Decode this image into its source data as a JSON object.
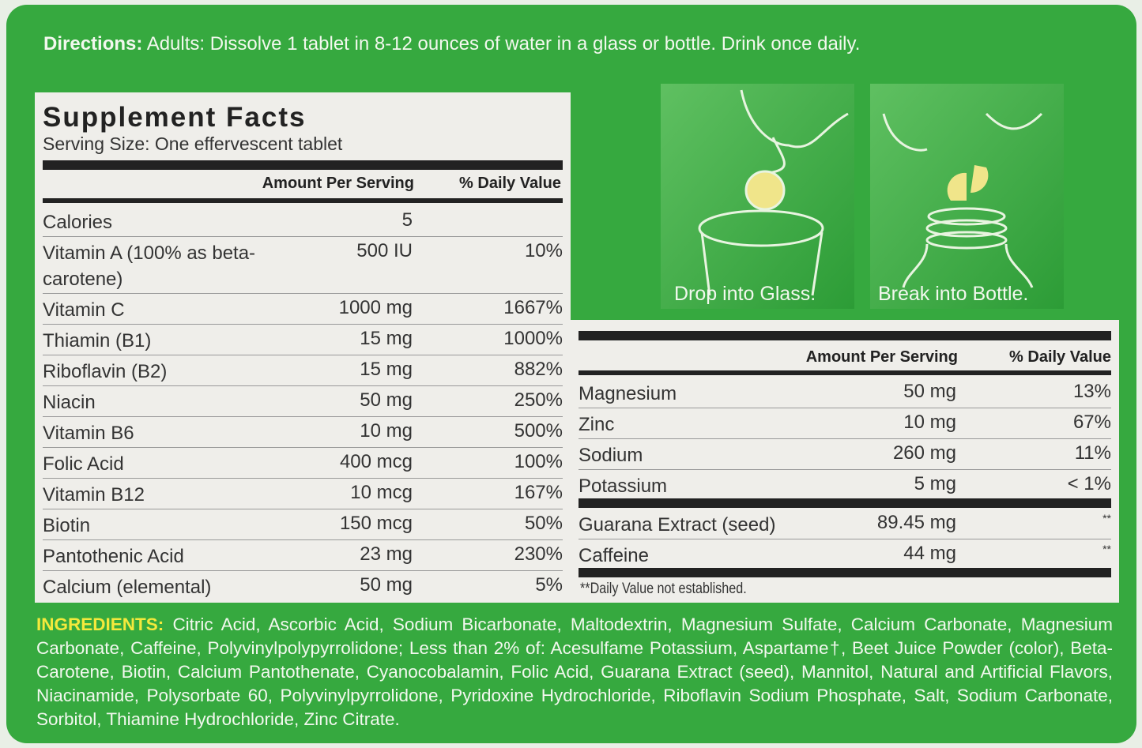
{
  "directions": {
    "label": "Directions:",
    "text": "Adults: Dissolve 1 tablet in 8-12 ounces of water in a glass or bottle. Drink once daily."
  },
  "supplement_facts": {
    "title": "Supplement Facts",
    "serving_size": "Serving Size: One effervescent tablet",
    "columns": [
      "Amount Per Serving",
      "% Daily Value"
    ],
    "rows": [
      {
        "name": "Calories",
        "amount": "5"
      },
      {
        "name": "Vitamin A (100% as beta-carotene)",
        "amount": "500 IU",
        "dv": "10%"
      },
      {
        "name": "Vitamin C",
        "amount": "1000 mg",
        "dv": "1667%"
      },
      {
        "name": "Thiamin (B1)",
        "amount": "15 mg",
        "dv": "1000%"
      },
      {
        "name": "Riboflavin (B2)",
        "amount": "15 mg",
        "dv": "882%"
      },
      {
        "name": "Niacin",
        "amount": "50 mg",
        "dv": "250%"
      },
      {
        "name": "Vitamin B6",
        "amount": "10 mg",
        "dv": "500%"
      },
      {
        "name": "Folic Acid",
        "amount": "400 mcg",
        "dv": "100%"
      },
      {
        "name": "Vitamin B12",
        "amount": "10 mcg",
        "dv": "167%"
      },
      {
        "name": "Biotin",
        "amount": "150 mcg",
        "dv": "50%"
      },
      {
        "name": "Pantothenic Acid",
        "amount": "23 mg",
        "dv": "230%"
      },
      {
        "name": "Calcium (elemental)",
        "amount": "50 mg",
        "dv": "5%"
      }
    ]
  },
  "illustrations": [
    {
      "caption": "Drop into Glass."
    },
    {
      "caption": "Break into Bottle."
    }
  ],
  "continued_facts": {
    "columns": [
      "Amount Per Serving",
      "% Daily Value"
    ],
    "minerals": [
      {
        "name": "Magnesium",
        "amount": "50 mg",
        "dv": "13%"
      },
      {
        "name": "Zinc",
        "amount": "10 mg",
        "dv": "67%"
      },
      {
        "name": "Sodium",
        "amount": "260 mg",
        "dv": "11%"
      },
      {
        "name": "Potassium",
        "amount": "5 mg",
        "dv": "< 1%"
      }
    ],
    "others": [
      {
        "name": "Guarana Extract (seed)",
        "amount": "89.45 mg",
        "dv": "**"
      },
      {
        "name": "Caffeine",
        "amount": "44 mg",
        "dv": "**"
      }
    ],
    "footnote": "**Daily Value not established."
  },
  "ingredients": {
    "label": "INGREDIENTS:",
    "text": "Citric Acid, Ascorbic Acid, Sodium Bicarbonate, Maltodextrin, Magnesium Sulfate, Calcium Carbonate, Magnesium Carbonate, Caffeine, Polyvinylpolypyrrolidone; Less than 2% of: Acesulfame Potassium, Aspartame†, Beet Juice Powder (color), Beta-Carotene, Biotin, Calcium Pantothenate, Cyanocobalamin, Folic Acid, Guarana Extract (seed), Mannitol, Natural and Artificial Flavors, Niacinamide, Polysorbate 60, Polyvinylpyrrolidone, Pyridoxine Hydrochloride, Riboflavin Sodium Phosphate, Salt, Sodium Carbonate, Sorbitol, Thiamine Hydrochloride, Zinc Citrate."
  }
}
